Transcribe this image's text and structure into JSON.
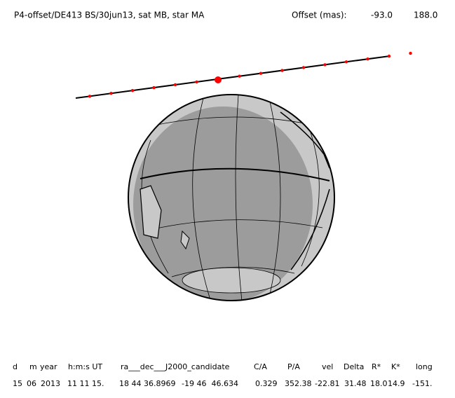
{
  "header": {
    "title": "P4-offset/DE413 BS/30jun13, sat MB, star MA",
    "offset_label": "Offset (mas):",
    "offset_values": [
      "-93.0",
      "188.0"
    ]
  },
  "table": {
    "headers": [
      "d",
      "m",
      "year",
      "h:m:s UT",
      "ra___dec___J2000_candidate",
      "C/A",
      "P/A",
      "vel",
      "Delta",
      "R*",
      "K*",
      "long"
    ],
    "rows": [
      [
        "15",
        "06",
        "2013",
        "11 11 15.",
        "18 44 36.8969",
        "-19 46  46.634",
        "0.329",
        "352.38",
        "-22.81",
        "31.48",
        "18.0",
        "14.9",
        "-151."
      ]
    ]
  }
}
